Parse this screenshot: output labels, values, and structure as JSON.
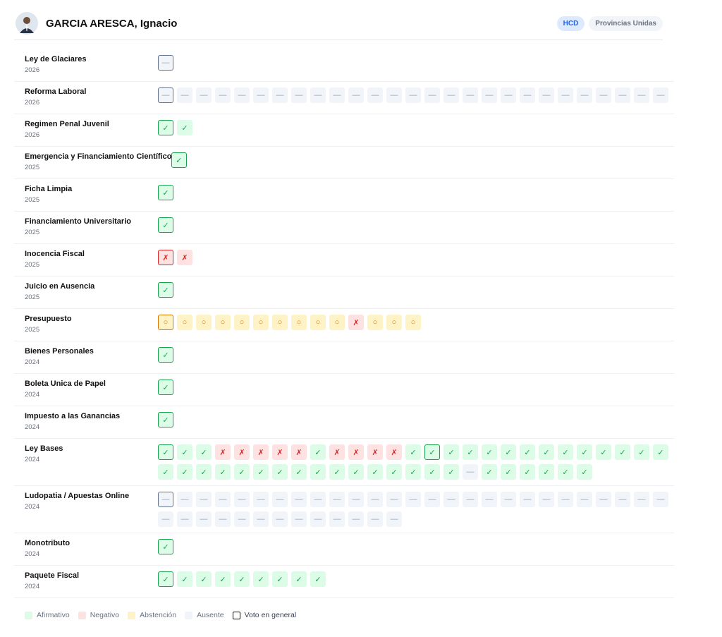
{
  "header": {
    "name": "GARCIA ARESCA, Ignacio",
    "badges": [
      "HCD",
      "Provincias Unidas"
    ]
  },
  "legend": [
    {
      "label": "Afirmativo",
      "bg": "#dcfce7",
      "fg": "#16a34a",
      "border": "#16a34a"
    },
    {
      "label": "Negativo",
      "bg": "#fee2e2",
      "fg": "#dc2626",
      "border": "#dc2626"
    },
    {
      "label": "Abstención",
      "bg": "#fef3c7",
      "fg": "#d97706",
      "border": "#d97706"
    },
    {
      "label": "Ausente",
      "bg": "#f1f5f9",
      "fg": "#94a3b8",
      "border": "#64748b"
    }
  ],
  "legend_general": "Voto en general",
  "vote_styles": {
    "✓": 0,
    "✗": 1,
    "○": 2,
    "—": 3
  },
  "rows": [
    {
      "title": "Ley de Glaciares",
      "year": "2026",
      "general": [
        0
      ],
      "votes": [
        "—"
      ]
    },
    {
      "title": "Reforma Laboral",
      "year": "2026",
      "general": [
        0
      ],
      "votes": [
        "—",
        "—",
        "—",
        "—",
        "—",
        "—",
        "—",
        "—",
        "—",
        "—",
        "—",
        "—",
        "—",
        "—",
        "—",
        "—",
        "—",
        "—",
        "—",
        "—",
        "—",
        "—",
        "—",
        "—",
        "—",
        "—",
        "—"
      ]
    },
    {
      "title": "Regimen Penal Juvenil",
      "year": "2026",
      "general": [
        0
      ],
      "votes": [
        "✓",
        "✓"
      ]
    },
    {
      "title": "Emergencia y Financiamiento Científico",
      "year": "2025",
      "general": [
        0
      ],
      "votes": [
        "✓"
      ]
    },
    {
      "title": "Ficha Limpia",
      "year": "2025",
      "general": [
        0
      ],
      "votes": [
        "✓"
      ]
    },
    {
      "title": "Financiamiento Universitario",
      "year": "2025",
      "general": [
        0
      ],
      "votes": [
        "✓"
      ]
    },
    {
      "title": "Inocencia Fiscal",
      "year": "2025",
      "general": [
        0
      ],
      "votes": [
        "✗",
        "✗"
      ]
    },
    {
      "title": "Juicio en Ausencia",
      "year": "2025",
      "general": [
        0
      ],
      "votes": [
        "✓"
      ]
    },
    {
      "title": "Presupuesto",
      "year": "2025",
      "general": [
        0
      ],
      "votes": [
        "○",
        "○",
        "○",
        "○",
        "○",
        "○",
        "○",
        "○",
        "○",
        "○",
        "✗",
        "○",
        "○",
        "○"
      ]
    },
    {
      "title": "Bienes Personales",
      "year": "2024",
      "general": [
        0
      ],
      "votes": [
        "✓"
      ]
    },
    {
      "title": "Boleta Unica de Papel",
      "year": "2024",
      "general": [
        0
      ],
      "votes": [
        "✓"
      ]
    },
    {
      "title": "Impuesto a las Ganancias",
      "year": "2024",
      "general": [
        0
      ],
      "votes": [
        "✓"
      ]
    },
    {
      "title": "Ley Bases",
      "year": "2024",
      "general": [
        0,
        14
      ],
      "votes": [
        "✓",
        "✓",
        "✓",
        "✗",
        "✗",
        "✗",
        "✗",
        "✗",
        "✓",
        "✗",
        "✗",
        "✗",
        "✗",
        "✓",
        "✓",
        "✓",
        "✓",
        "✓",
        "✓",
        "✓",
        "✓",
        "✓",
        "✓",
        "✓",
        "✓",
        "✓",
        "✓",
        "✓",
        "✓",
        "✓",
        "✓",
        "✓",
        "✓",
        "✓",
        "✓",
        "✓",
        "✓",
        "✓",
        "✓",
        "✓",
        "✓",
        "✓",
        "✓",
        "—",
        "✓",
        "✓",
        "✓",
        "✓",
        "✓",
        "✓"
      ]
    },
    {
      "title": "Ludopatia / Apuestas Online",
      "year": "2024",
      "general": [
        0
      ],
      "votes": [
        "—",
        "—",
        "—",
        "—",
        "—",
        "—",
        "—",
        "—",
        "—",
        "—",
        "—",
        "—",
        "—",
        "—",
        "—",
        "—",
        "—",
        "—",
        "—",
        "—",
        "—",
        "—",
        "—",
        "—",
        "—",
        "—",
        "—",
        "—",
        "—",
        "—",
        "—",
        "—",
        "—",
        "—",
        "—",
        "—",
        "—",
        "—",
        "—",
        "—"
      ]
    },
    {
      "title": "Monotributo",
      "year": "2024",
      "general": [
        0
      ],
      "votes": [
        "✓"
      ]
    },
    {
      "title": "Paquete Fiscal",
      "year": "2024",
      "general": [
        0
      ],
      "votes": [
        "✓",
        "✓",
        "✓",
        "✓",
        "✓",
        "✓",
        "✓",
        "✓",
        "✓"
      ]
    }
  ]
}
